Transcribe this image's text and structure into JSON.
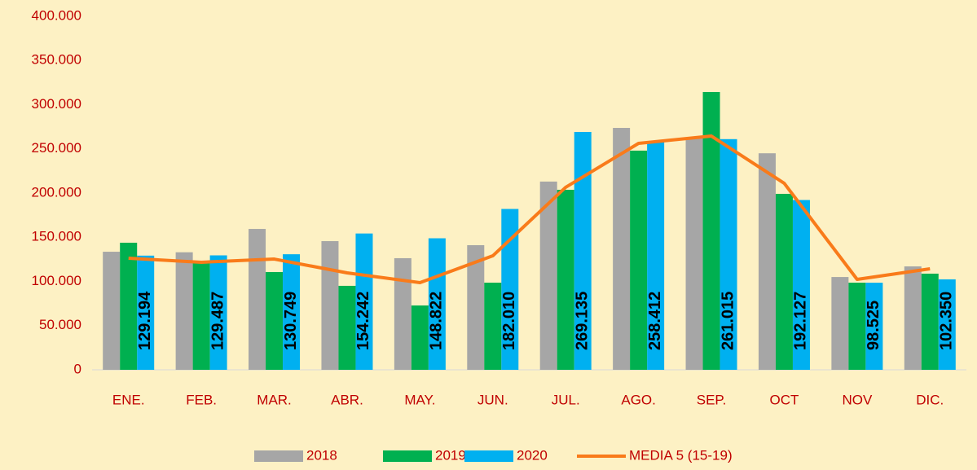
{
  "chart_data": {
    "type": "bar",
    "categories": [
      "ENE.",
      "FEB.",
      "MAR.",
      "ABR.",
      "MAY.",
      "JUN.",
      "JUL.",
      "AGO.",
      "SEP.",
      "OCT",
      "NOV",
      "DIC."
    ],
    "series": [
      {
        "name": "2018",
        "color": "#a6a6a6",
        "values": [
          133600,
          133000,
          159400,
          145600,
          126300,
          141000,
          213000,
          273700,
          262000,
          245000,
          105000,
          117000
        ]
      },
      {
        "name": "2019",
        "color": "#00b050",
        "values": [
          143800,
          123500,
          110600,
          95000,
          72800,
          98600,
          203700,
          248000,
          314300,
          199100,
          98600,
          108800
        ]
      },
      {
        "name": "2020",
        "color": "#00b0f0",
        "values": [
          129194,
          129487,
          130749,
          154242,
          148822,
          182010,
          269135,
          258412,
          261015,
          192127,
          98525,
          102350
        ],
        "value_labels": [
          "129.194",
          "129.487",
          "130.749",
          "154.242",
          "148.822",
          "182.010",
          "269.135",
          "258.412",
          "261.015",
          "192.127",
          "98.525",
          "102.350"
        ]
      },
      {
        "name": "MEDIA 5 (15-19)",
        "color": "#f97b1a",
        "type": "line",
        "values": [
          126300,
          121700,
          125300,
          109700,
          98600,
          129000,
          206500,
          256200,
          264500,
          211000,
          102300,
          114300
        ]
      }
    ],
    "ylim": [
      0,
      400000
    ],
    "yticks": [
      0,
      {
        "value": 50000,
        "label": "50.000"
      },
      {
        "value": 100000,
        "label": "100.000"
      },
      {
        "value": 150000,
        "label": "150.000"
      },
      {
        "value": 200000,
        "label": "200.000"
      },
      {
        "value": 250000,
        "label": "250.000"
      },
      {
        "value": 300000,
        "label": "300.000"
      },
      {
        "value": 350000,
        "label": "350.000"
      },
      {
        "value": 400000,
        "label": "400.000"
      }
    ],
    "grid": false,
    "legend": "bottom"
  }
}
